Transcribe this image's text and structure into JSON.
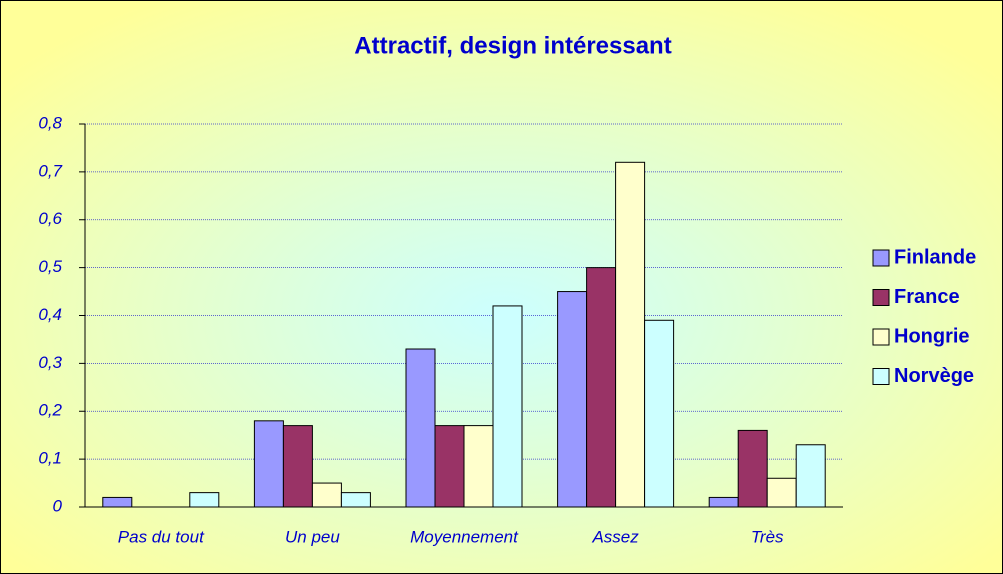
{
  "chart_data": {
    "type": "bar",
    "title": "Attractif, design intéressant",
    "categories": [
      "Pas du tout",
      "Un peu",
      "Moyennement",
      "Assez",
      "Très"
    ],
    "series": [
      {
        "name": "Finlande",
        "color": "#9999ff",
        "values": [
          0.02,
          0.18,
          0.33,
          0.45,
          0.02
        ]
      },
      {
        "name": "France",
        "color": "#993366",
        "values": [
          0,
          0.17,
          0.17,
          0.5,
          0.16
        ]
      },
      {
        "name": "Hongrie",
        "color": "#ffffcc",
        "values": [
          0,
          0.05,
          0.17,
          0.72,
          0.06
        ]
      },
      {
        "name": "Norvège",
        "color": "#ccffff",
        "values": [
          0.03,
          0.03,
          0.42,
          0.39,
          0.13
        ]
      }
    ],
    "ylim": [
      0,
      0.8
    ],
    "yticks": [
      0,
      {
        "value": 0.1,
        "label": "0,1"
      },
      {
        "value": 0.2,
        "label": "0,2"
      },
      {
        "value": 0.3,
        "label": "0,3"
      },
      {
        "value": 0.4,
        "label": "0,4"
      },
      {
        "value": 0.5,
        "label": "0,5"
      },
      {
        "value": 0.6,
        "label": "0,6"
      },
      {
        "value": 0.7,
        "label": "0,7"
      },
      {
        "value": 0.8,
        "label": "0,8"
      }
    ],
    "grid": true,
    "legend": "right"
  }
}
